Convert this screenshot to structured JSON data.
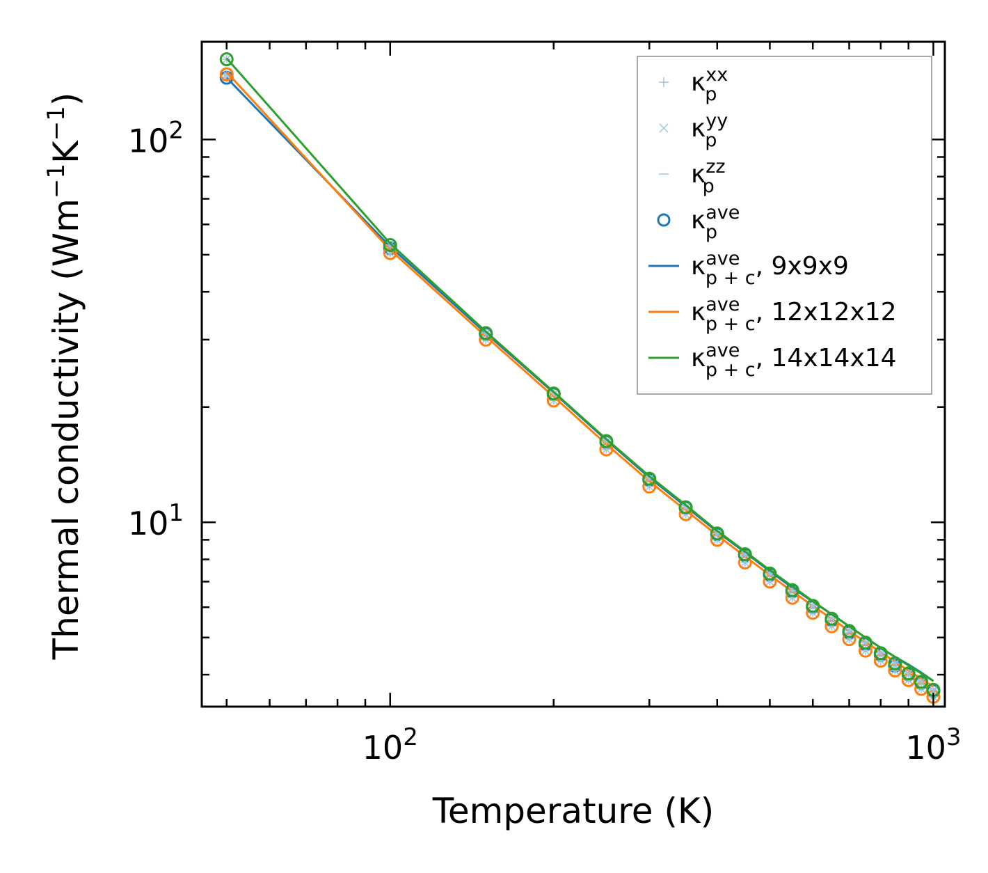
{
  "chart_data": {
    "type": "scatter",
    "xscale": "log",
    "yscale": "log",
    "xlim": [
      45,
      1050
    ],
    "ylim": [
      3.3,
      180
    ],
    "xlabel": "Temperature (K)",
    "ylabel": {
      "main": "Thermal conductivity (Wm",
      "sup1": "−1",
      "mid": "K",
      "sup2": "−1",
      "end": ")"
    },
    "x_ticks": [
      {
        "value": 100,
        "base": "10",
        "exp": "2"
      },
      {
        "value": 1000,
        "base": "10",
        "exp": "3"
      }
    ],
    "y_ticks": [
      {
        "value": 10,
        "base": "10",
        "exp": "1"
      },
      {
        "value": 100,
        "base": "10",
        "exp": "2"
      }
    ],
    "x": [
      50,
      100,
      150,
      200,
      250,
      300,
      350,
      400,
      450,
      500,
      550,
      600,
      650,
      700,
      750,
      800,
      850,
      900,
      950,
      1000
    ],
    "series": [
      {
        "name": "9x9x9",
        "color": "#1f77b4",
        "points_ave": [
          145,
          52,
          31,
          21.6,
          16.2,
          12.9,
          10.9,
          9.3,
          8.2,
          7.3,
          6.6,
          6.0,
          5.55,
          5.15,
          4.8,
          4.5,
          4.22,
          4.0,
          3.8,
          3.62
        ],
        "line_pc": [
          145,
          52.5,
          31.2,
          21.8,
          16.4,
          13.1,
          11.0,
          9.45,
          8.35,
          7.45,
          6.75,
          6.2,
          5.75,
          5.35,
          5.0,
          4.7,
          4.45,
          4.25,
          4.05,
          3.85
        ]
      },
      {
        "name": "12x12x12",
        "color": "#ff7f0e",
        "points_ave": [
          148,
          50.5,
          30,
          20.8,
          15.5,
          12.4,
          10.5,
          9.0,
          7.85,
          7.0,
          6.35,
          5.8,
          5.35,
          4.95,
          4.62,
          4.35,
          4.1,
          3.87,
          3.67,
          3.5
        ],
        "line_pc": [
          150,
          51.5,
          30.6,
          21.3,
          16.0,
          12.8,
          10.75,
          9.25,
          8.15,
          7.28,
          6.6,
          6.05,
          5.6,
          5.2,
          4.87,
          4.58,
          4.32,
          4.1,
          3.9,
          3.72
        ]
      },
      {
        "name": "14x14x14",
        "color": "#2ca02c",
        "points_ave": [
          162,
          53,
          31.2,
          21.7,
          16.3,
          13.0,
          10.95,
          9.35,
          8.25,
          7.35,
          6.65,
          6.05,
          5.6,
          5.2,
          4.85,
          4.55,
          4.28,
          4.03,
          3.83,
          3.65
        ],
        "line_pc": [
          163,
          53.5,
          31.5,
          21.9,
          16.5,
          13.2,
          11.1,
          9.5,
          8.4,
          7.5,
          6.8,
          6.22,
          5.75,
          5.35,
          5.0,
          4.7,
          4.45,
          4.23,
          4.03,
          3.85
        ]
      }
    ],
    "legend": {
      "position": "top-right",
      "entries": [
        {
          "marker": "plus",
          "symbol": "κ",
          "sup": "xx",
          "sub": "p",
          "suffix": ""
        },
        {
          "marker": "cross",
          "symbol": "κ",
          "sup": "yy",
          "sub": "p",
          "suffix": ""
        },
        {
          "marker": "dash",
          "symbol": "κ",
          "sup": "zz",
          "sub": "p",
          "suffix": ""
        },
        {
          "marker": "circle",
          "symbol": "κ",
          "sup": "ave",
          "sub": "p",
          "suffix": ""
        },
        {
          "marker": "line",
          "color": "#1f77b4",
          "symbol": "κ",
          "sup": "ave",
          "sub": "p + c",
          "suffix": ", 9x9x9"
        },
        {
          "marker": "line",
          "color": "#ff7f0e",
          "symbol": "κ",
          "sup": "ave",
          "sub": "p + c",
          "suffix": ", 12x12x12"
        },
        {
          "marker": "line",
          "color": "#2ca02c",
          "symbol": "κ",
          "sup": "ave",
          "sub": "p + c",
          "suffix": ", 14x14x14"
        }
      ]
    },
    "marker_color_light": "#9ec4e0"
  }
}
